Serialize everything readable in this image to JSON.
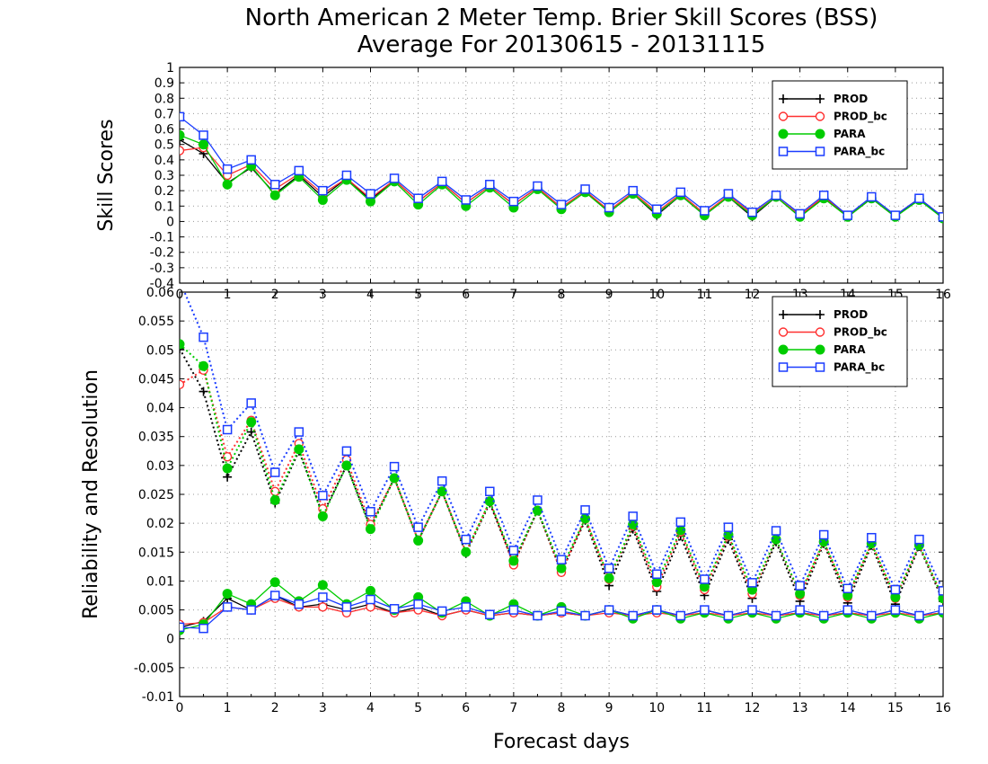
{
  "title": "North American 2 Meter Temp. Brier Skill Scores (BSS)",
  "subtitle": "Average For 20130615 - 20131115",
  "xlabel": "Forecast days",
  "colors": {
    "PROD": "#000000",
    "PROD_bc": "#ff3030",
    "PARA": "#00cc00",
    "PARA_bc": "#1a3cff"
  },
  "chart_data": [
    {
      "type": "line",
      "ylabel": "Skill Scores",
      "ylim": [
        -0.4,
        1
      ],
      "xlim": [
        0,
        16
      ],
      "yticks": [
        "1",
        "0.9",
        "0.8",
        "0.7",
        "0.6",
        "0.5",
        "0.4",
        "0.3",
        "0.2",
        "0.1",
        "0",
        "-0.1",
        "-0.2",
        "-0.3",
        "-0.4"
      ],
      "xticks": [
        "0",
        "1",
        "2",
        "3",
        "4",
        "5",
        "6",
        "7",
        "8",
        "9",
        "10",
        "11",
        "12",
        "13",
        "14",
        "15",
        "16"
      ],
      "grid": true,
      "legend": "top-right",
      "x": [
        0,
        0.5,
        1,
        1.5,
        2,
        2.5,
        3,
        3.5,
        4,
        4.5,
        5,
        5.5,
        6,
        6.5,
        7,
        7.5,
        8,
        8.5,
        9,
        9.5,
        10,
        10.5,
        11,
        11.5,
        12,
        12.5,
        13,
        13.5,
        14,
        14.5,
        15,
        15.5,
        16
      ],
      "series": [
        {
          "name": "PROD",
          "marker": "plus",
          "values": [
            0.53,
            0.44,
            0.25,
            0.35,
            0.18,
            0.3,
            0.16,
            0.28,
            0.14,
            0.27,
            0.13,
            0.25,
            0.12,
            0.23,
            0.11,
            0.22,
            0.09,
            0.2,
            0.06,
            0.18,
            0.04,
            0.17,
            0.04,
            0.16,
            0.03,
            0.16,
            0.03,
            0.16,
            0.03,
            0.15,
            0.03,
            0.15,
            0.02
          ]
        },
        {
          "name": "PROD_bc",
          "marker": "circle-open",
          "values": [
            0.46,
            0.48,
            0.3,
            0.37,
            0.21,
            0.31,
            0.18,
            0.28,
            0.15,
            0.27,
            0.13,
            0.25,
            0.12,
            0.23,
            0.11,
            0.22,
            0.09,
            0.2,
            0.07,
            0.19,
            0.06,
            0.18,
            0.05,
            0.17,
            0.05,
            0.16,
            0.04,
            0.16,
            0.04,
            0.15,
            0.04,
            0.15,
            0.03
          ]
        },
        {
          "name": "PARA",
          "marker": "circle-filled",
          "values": [
            0.56,
            0.5,
            0.24,
            0.36,
            0.17,
            0.29,
            0.14,
            0.27,
            0.13,
            0.26,
            0.11,
            0.24,
            0.1,
            0.22,
            0.09,
            0.21,
            0.08,
            0.19,
            0.06,
            0.18,
            0.05,
            0.17,
            0.04,
            0.16,
            0.04,
            0.16,
            0.03,
            0.15,
            0.03,
            0.15,
            0.03,
            0.14,
            0.02
          ]
        },
        {
          "name": "PARA_bc",
          "marker": "square-open",
          "values": [
            0.68,
            0.56,
            0.34,
            0.4,
            0.24,
            0.33,
            0.2,
            0.3,
            0.18,
            0.28,
            0.15,
            0.26,
            0.14,
            0.24,
            0.13,
            0.23,
            0.11,
            0.21,
            0.09,
            0.2,
            0.08,
            0.19,
            0.07,
            0.18,
            0.06,
            0.17,
            0.05,
            0.17,
            0.04,
            0.16,
            0.04,
            0.15,
            0.03
          ]
        }
      ]
    },
    {
      "type": "line",
      "ylabel": "Reliability and Resolution",
      "ylim": [
        -0.01,
        0.06
      ],
      "xlim": [
        0,
        16
      ],
      "yticks": [
        "0.06",
        "0.055",
        "0.05",
        "0.045",
        "0.04",
        "0.035",
        "0.03",
        "0.025",
        "0.02",
        "0.015",
        "0.01",
        "0.005",
        "0",
        "-0.005",
        "-0.01"
      ],
      "xticks": [
        "0",
        "1",
        "2",
        "3",
        "4",
        "5",
        "6",
        "7",
        "8",
        "9",
        "10",
        "11",
        "12",
        "13",
        "14",
        "15",
        "16"
      ],
      "grid": true,
      "legend": "top-right",
      "x": [
        0,
        0.5,
        1,
        1.5,
        2,
        2.5,
        3,
        3.5,
        4,
        4.5,
        5,
        5.5,
        6,
        6.5,
        7,
        7.5,
        8,
        8.5,
        9,
        9.5,
        10,
        10.5,
        11,
        11.5,
        12,
        12.5,
        13,
        13.5,
        14,
        14.5,
        15,
        15.5,
        16
      ],
      "series": [
        {
          "name": "PROD",
          "marker": "plus",
          "line": "dotted",
          "values": [
            0.0502,
            0.0428,
            0.028,
            0.0358,
            0.0235,
            0.0325,
            0.0215,
            0.03,
            0.0193,
            0.0278,
            0.017,
            0.0255,
            0.0148,
            0.0235,
            0.013,
            0.0222,
            0.0115,
            0.0205,
            0.0092,
            0.019,
            0.0082,
            0.0178,
            0.0075,
            0.0172,
            0.007,
            0.0168,
            0.0065,
            0.0165,
            0.0062,
            0.0162,
            0.006,
            0.016,
            0.0065
          ]
        },
        {
          "name": "PROD_bc",
          "marker": "circle-open",
          "line": "dotted",
          "values": [
            0.044,
            0.0465,
            0.0315,
            0.0378,
            0.0255,
            0.0338,
            0.0225,
            0.031,
            0.0198,
            0.0278,
            0.017,
            0.0255,
            0.015,
            0.0238,
            0.0128,
            0.0222,
            0.0115,
            0.0208,
            0.0103,
            0.0195,
            0.009,
            0.0185,
            0.0085,
            0.0178,
            0.0078,
            0.0172,
            0.0075,
            0.0168,
            0.0072,
            0.0165,
            0.007,
            0.0162,
            0.007
          ]
        },
        {
          "name": "PARA",
          "marker": "circle-filled",
          "line": "dotted",
          "values": [
            0.051,
            0.0472,
            0.0295,
            0.0375,
            0.024,
            0.0328,
            0.0212,
            0.03,
            0.019,
            0.0278,
            0.017,
            0.0255,
            0.015,
            0.0238,
            0.0135,
            0.0222,
            0.0122,
            0.0208,
            0.0105,
            0.0198,
            0.0098,
            0.0188,
            0.009,
            0.018,
            0.0085,
            0.0172,
            0.0078,
            0.0168,
            0.0075,
            0.0165,
            0.0072,
            0.0162,
            0.007
          ]
        },
        {
          "name": "PARA_bc",
          "marker": "square-open",
          "line": "dotted",
          "values": [
            0.062,
            0.0522,
            0.0362,
            0.0408,
            0.0288,
            0.0358,
            0.0248,
            0.0325,
            0.022,
            0.0298,
            0.0193,
            0.0273,
            0.0172,
            0.0255,
            0.0153,
            0.024,
            0.0137,
            0.0223,
            0.0122,
            0.0212,
            0.0112,
            0.0202,
            0.0103,
            0.0193,
            0.0097,
            0.0187,
            0.0092,
            0.018,
            0.0087,
            0.0175,
            0.0085,
            0.0172,
            0.0083
          ]
        },
        {
          "name": "PROD",
          "marker": "plus",
          "line": "solid",
          "values": [
            0.002,
            0.003,
            0.007,
            0.005,
            0.0075,
            0.0055,
            0.006,
            0.005,
            0.006,
            0.0045,
            0.0055,
            0.004,
            0.005,
            0.004,
            0.0045,
            0.004,
            0.0045,
            0.004,
            0.005,
            0.004,
            0.005,
            0.004,
            0.005,
            0.004,
            0.005,
            0.004,
            0.0045,
            0.004,
            0.0045,
            0.004,
            0.005,
            0.004,
            0.0045
          ]
        },
        {
          "name": "PROD_bc",
          "marker": "circle-open",
          "line": "solid",
          "values": [
            0.0025,
            0.0028,
            0.0055,
            0.005,
            0.007,
            0.0055,
            0.0055,
            0.0045,
            0.0055,
            0.0045,
            0.005,
            0.004,
            0.005,
            0.004,
            0.0045,
            0.004,
            0.0045,
            0.004,
            0.0045,
            0.004,
            0.0045,
            0.004,
            0.0045,
            0.004,
            0.0045,
            0.004,
            0.0045,
            0.004,
            0.0045,
            0.004,
            0.0045,
            0.004,
            0.0045
          ]
        },
        {
          "name": "PARA",
          "marker": "circle-filled",
          "line": "solid",
          "values": [
            0.0015,
            0.0025,
            0.0078,
            0.006,
            0.0098,
            0.0065,
            0.0093,
            0.006,
            0.0083,
            0.005,
            0.0072,
            0.0045,
            0.0065,
            0.004,
            0.006,
            0.004,
            0.0055,
            0.004,
            0.005,
            0.0035,
            0.005,
            0.0035,
            0.0045,
            0.0035,
            0.0045,
            0.0035,
            0.0045,
            0.0035,
            0.0045,
            0.0035,
            0.0045,
            0.0035,
            0.0045
          ]
        },
        {
          "name": "PARA_bc",
          "marker": "square-open",
          "line": "solid",
          "values": [
            0.002,
            0.0018,
            0.0055,
            0.005,
            0.0075,
            0.006,
            0.0072,
            0.0055,
            0.0068,
            0.0052,
            0.006,
            0.0048,
            0.0055,
            0.0042,
            0.005,
            0.004,
            0.0048,
            0.004,
            0.005,
            0.004,
            0.005,
            0.004,
            0.005,
            0.004,
            0.005,
            0.004,
            0.005,
            0.004,
            0.005,
            0.004,
            0.005,
            0.004,
            0.005
          ]
        }
      ]
    }
  ]
}
